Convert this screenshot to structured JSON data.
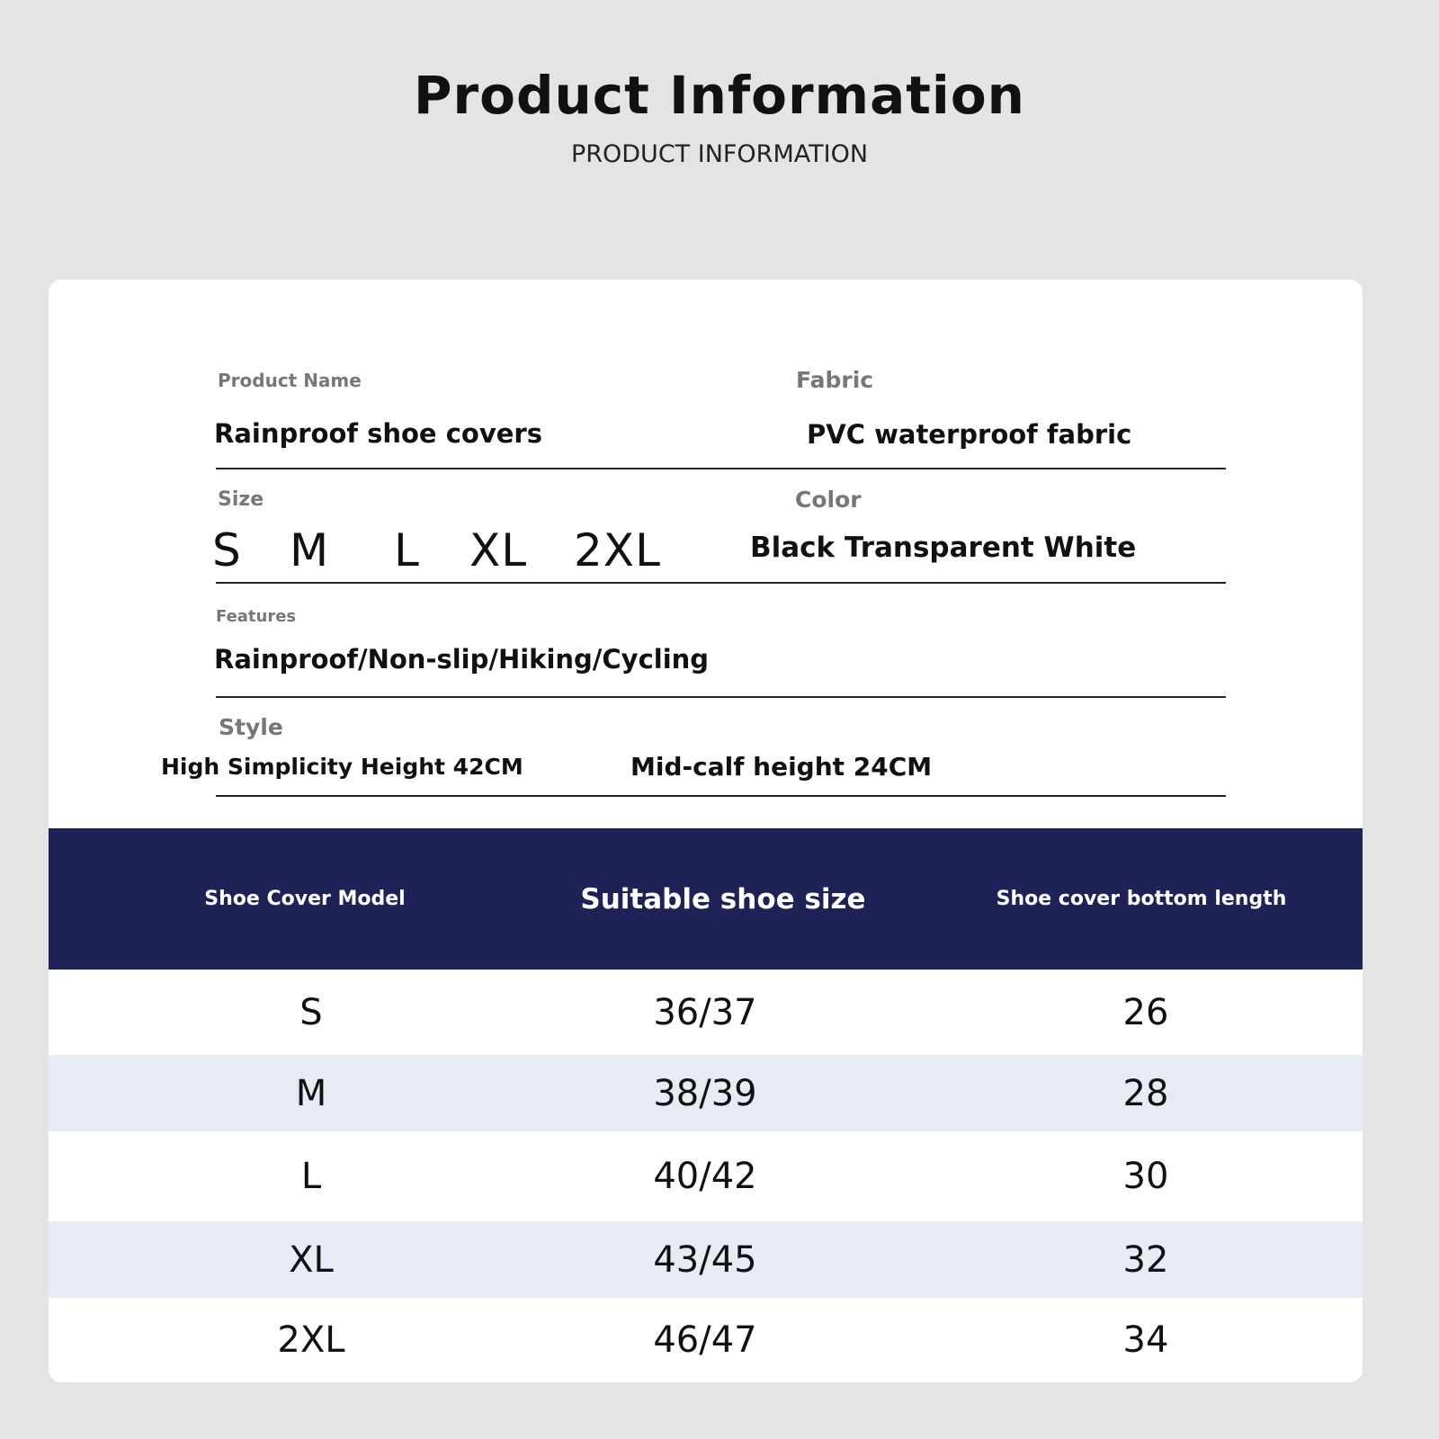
{
  "header": {
    "title": "Product Information",
    "subtitle": "PRODUCT INFORMATION"
  },
  "info": {
    "product_name_label": "Product Name",
    "product_name": "Rainproof shoe covers",
    "fabric_label": "Fabric",
    "fabric": "PVC waterproof fabric",
    "size_label": "Size",
    "sizes": [
      "S",
      "M",
      "L",
      "XL",
      "2XL"
    ],
    "color_label": "Color",
    "color": "Black Transparent White",
    "features_label": "Features",
    "features": "Rainproof/Non-slip/Hiking/Cycling",
    "style_label": "Style",
    "styles": [
      "High Simplicity Height 42CM",
      "Mid-calf height 24CM"
    ]
  },
  "table": {
    "headers": [
      "Shoe Cover Model",
      "Suitable shoe size",
      "Shoe cover bottom length"
    ],
    "rows": [
      [
        "S",
        "36/37",
        "26"
      ],
      [
        "M",
        "38/39",
        "28"
      ],
      [
        "L",
        "40/42",
        "30"
      ],
      [
        "XL",
        "43/45",
        "32"
      ],
      [
        "2XL",
        "46/47",
        "34"
      ]
    ]
  },
  "colors": {
    "header_bg": "#1f2257",
    "alt_row": "#e7ebf3",
    "page_bg": "#e4e4e4"
  }
}
